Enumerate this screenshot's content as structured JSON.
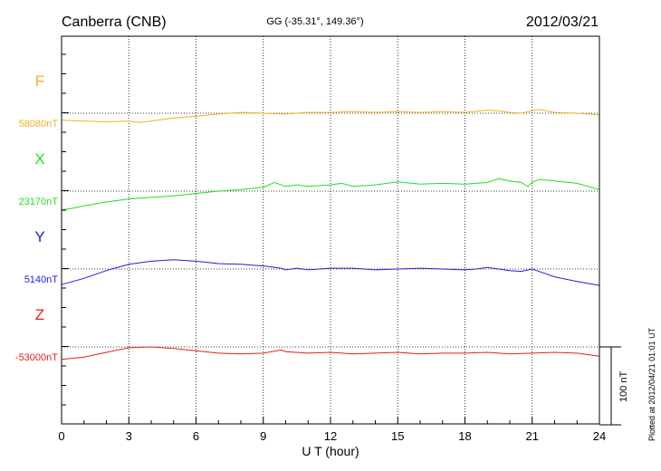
{
  "header": {
    "station": "Canberra (CNB)",
    "coords": "GG (-35.31°, 149.36°)",
    "date": "2012/03/21"
  },
  "footer": {
    "plotted_note": "Plotted at 2012/04/21 01:01 UT"
  },
  "chart_data": {
    "type": "line",
    "xlabel": "U T (hour)",
    "xlim": [
      0,
      24
    ],
    "x_ticks": [
      "0",
      "3",
      "6",
      "9",
      "12",
      "15",
      "18",
      "21",
      "24"
    ],
    "scale_bar_label": "100 nT",
    "scale_bar_nT": 100,
    "grid": true,
    "series": [
      {
        "name": "F",
        "baseline_label": "58080nT",
        "baseline_nT": 58080,
        "color": "#f0b020",
        "x": [
          0,
          1,
          2,
          3,
          3.5,
          4,
          5,
          6,
          7,
          8,
          9,
          10,
          11,
          12,
          13,
          14,
          15,
          16,
          17,
          18,
          19,
          19.5,
          20,
          20.5,
          21,
          21.3,
          22,
          23,
          24
        ],
        "y": [
          58071,
          58070,
          58069,
          58070,
          58068,
          58070,
          58074,
          58076,
          58079,
          58081,
          58080,
          58079,
          58081,
          58081,
          58082,
          58081,
          58082,
          58081,
          58082,
          58081,
          58084,
          58083,
          58081,
          58080,
          58083,
          58085,
          58081,
          58080,
          58078
        ]
      },
      {
        "name": "X",
        "baseline_label": "23170nT",
        "baseline_nT": 23170,
        "color": "#22dd22",
        "x": [
          0,
          0.5,
          1,
          2,
          3,
          4,
          5,
          6,
          7,
          8,
          9,
          9.5,
          10,
          10.5,
          11,
          12,
          12.5,
          13,
          14,
          15,
          16,
          17,
          18,
          19,
          19.5,
          20,
          20.5,
          20.8,
          21,
          21.3,
          22,
          23,
          24
        ],
        "y": [
          23146,
          23148,
          23151,
          23156,
          23160,
          23162,
          23164,
          23167,
          23170,
          23172,
          23175,
          23181,
          23176,
          23178,
          23176,
          23178,
          23180,
          23176,
          23178,
          23182,
          23179,
          23180,
          23179,
          23181,
          23186,
          23183,
          23181,
          23176,
          23181,
          23185,
          23183,
          23180,
          23172
        ]
      },
      {
        "name": "Y",
        "baseline_label": "5140nT",
        "baseline_nT": 5140,
        "color": "#1f1fdd",
        "x": [
          0,
          1,
          2,
          3,
          4,
          5,
          6,
          7,
          8,
          9,
          9.8,
          10,
          10.5,
          11,
          12,
          13,
          14,
          15,
          16,
          17,
          18,
          18.5,
          19,
          19.5,
          20,
          20.5,
          21,
          21.5,
          22,
          23,
          24
        ],
        "y": [
          5120,
          5128,
          5138,
          5146,
          5150,
          5152,
          5150,
          5147,
          5146,
          5144,
          5141,
          5139,
          5141,
          5139,
          5141,
          5141,
          5139,
          5140,
          5141,
          5140,
          5139,
          5140,
          5142,
          5140,
          5138,
          5137,
          5140,
          5135,
          5130,
          5124,
          5119
        ]
      },
      {
        "name": "Z",
        "baseline_label": "-53000nT",
        "baseline_nT": -53000,
        "color": "#dd2222",
        "x": [
          0,
          1,
          2,
          3,
          4,
          5,
          6,
          7,
          8,
          9,
          9.8,
          10,
          11,
          12,
          13,
          14,
          15,
          16,
          17,
          18,
          19,
          20,
          21,
          22,
          23,
          24
        ],
        "y": [
          -53016,
          -53013,
          -53007,
          -53001,
          -53000,
          -53002,
          -53005,
          -53008,
          -53009,
          -53008,
          -53004,
          -53006,
          -53008,
          -53007,
          -53009,
          -53008,
          -53007,
          -53009,
          -53008,
          -53008,
          -53007,
          -53009,
          -53008,
          -53007,
          -53008,
          -53012
        ]
      }
    ]
  }
}
